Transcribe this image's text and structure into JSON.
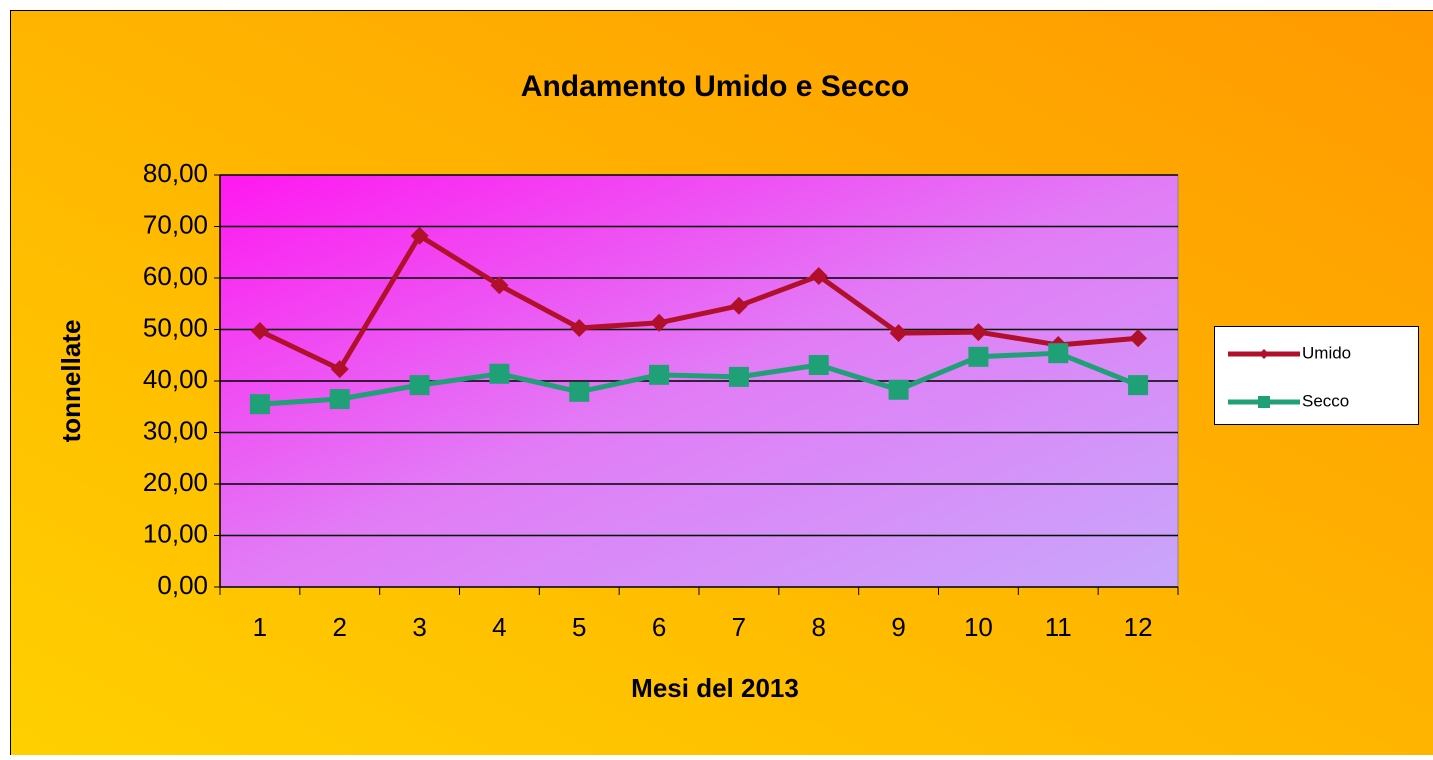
{
  "chart_data": {
    "type": "line",
    "title": "Andamento Umido e Secco",
    "xlabel": "Mesi del 2013",
    "ylabel": "tonnellate",
    "categories": [
      "1",
      "2",
      "3",
      "4",
      "5",
      "6",
      "7",
      "8",
      "9",
      "10",
      "11",
      "12"
    ],
    "series": [
      {
        "name": "Umido",
        "color": "#b0102a",
        "marker": "diamond",
        "values": [
          49.7,
          42.3,
          68.2,
          58.6,
          50.3,
          51.3,
          54.6,
          60.4,
          49.3,
          49.5,
          47.0,
          48.3
        ]
      },
      {
        "name": "Secco",
        "color": "#1fa077",
        "marker": "square",
        "values": [
          35.5,
          36.5,
          39.2,
          41.4,
          37.9,
          41.2,
          40.8,
          43.1,
          38.3,
          44.7,
          45.4,
          39.2
        ]
      }
    ],
    "ylim": [
      0,
      80
    ],
    "yticks": [
      {
        "value": 0,
        "label": "0,00"
      },
      {
        "value": 10,
        "label": "10,00"
      },
      {
        "value": 20,
        "label": "20,00"
      },
      {
        "value": 30,
        "label": "30,00"
      },
      {
        "value": 40,
        "label": "40,00"
      },
      {
        "value": 50,
        "label": "50,00"
      },
      {
        "value": 60,
        "label": "60,00"
      },
      {
        "value": 70,
        "label": "70,00"
      },
      {
        "value": 80,
        "label": "80,00"
      }
    ],
    "grid": true,
    "legend": "right"
  }
}
